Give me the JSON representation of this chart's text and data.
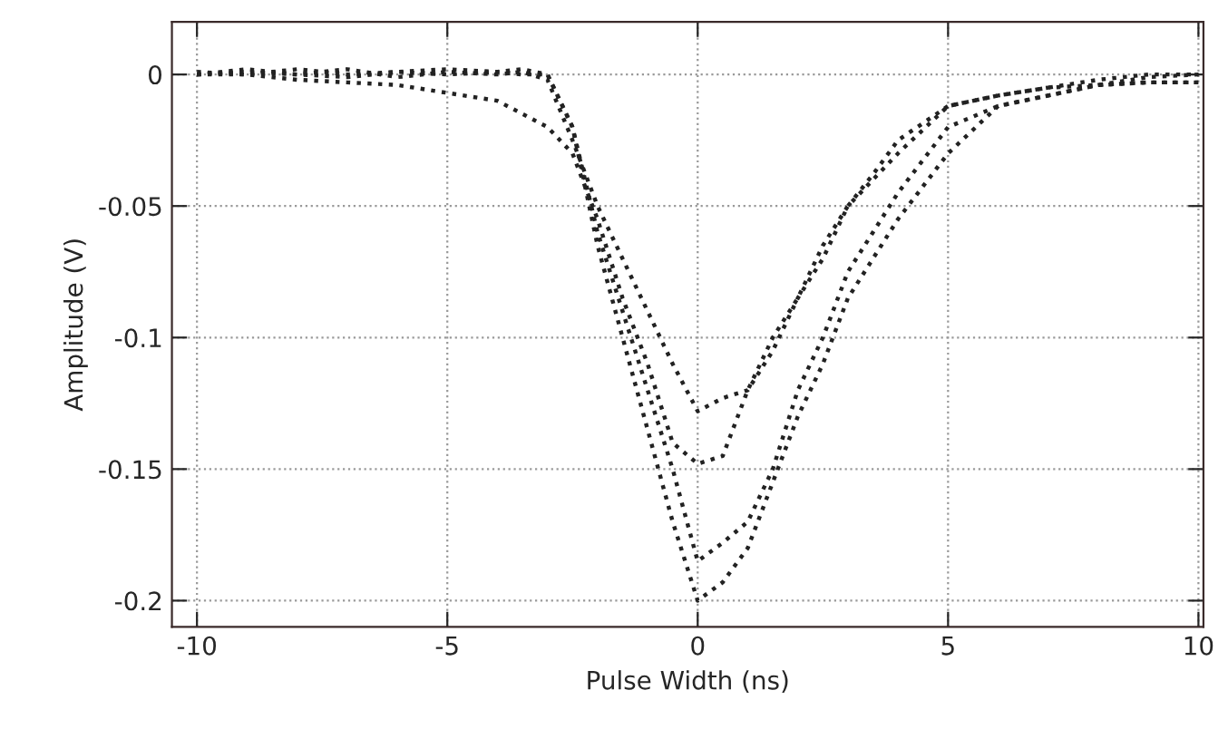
{
  "chart_data": {
    "type": "line",
    "xlabel": "Pulse Width (ns)",
    "ylabel": "Amplitude (V)",
    "xlim": [
      -10.5,
      10.1
    ],
    "ylim": [
      -0.21,
      0.02
    ],
    "xticks": [
      -10,
      -5,
      0,
      5,
      10
    ],
    "yticks": [
      -0.2,
      -0.15,
      -0.1,
      -0.05,
      0
    ],
    "grid": true,
    "marker": "none",
    "line_style": "dotted",
    "series": [
      {
        "color": "#222222",
        "x": [
          -10,
          -9,
          -8,
          -7,
          -6,
          -5,
          -4,
          -3.5,
          -3,
          -2.5,
          -2,
          -1.5,
          -1,
          -0.5,
          0,
          0.5,
          1,
          1.5,
          2,
          2.5,
          3,
          3.5,
          4,
          5,
          6,
          7,
          8,
          9,
          10
        ],
        "values": [
          0,
          0.002,
          0,
          0.002,
          -0.001,
          0.001,
          0,
          0.001,
          -0.002,
          -0.025,
          -0.05,
          -0.07,
          -0.09,
          -0.11,
          -0.128,
          -0.123,
          -0.12,
          -0.105,
          -0.085,
          -0.07,
          -0.05,
          -0.038,
          -0.025,
          -0.012,
          -0.008,
          -0.005,
          -0.002,
          0,
          0
        ]
      },
      {
        "color": "#222222",
        "x": [
          -10,
          -9,
          -8,
          -7,
          -6,
          -5,
          -4,
          -3.5,
          -3,
          -2.5,
          -2,
          -1.5,
          -1,
          -0.5,
          0,
          0.5,
          1,
          1.5,
          2,
          2.5,
          3,
          3.5,
          4,
          5,
          6,
          7,
          8,
          9,
          10
        ],
        "values": [
          0,
          0,
          -0.002,
          -0.003,
          -0.004,
          -0.007,
          -0.01,
          -0.015,
          -0.02,
          -0.03,
          -0.055,
          -0.085,
          -0.11,
          -0.14,
          -0.148,
          -0.145,
          -0.12,
          -0.1,
          -0.085,
          -0.065,
          -0.05,
          -0.04,
          -0.03,
          -0.012,
          -0.008,
          -0.005,
          -0.004,
          -0.003,
          -0.003
        ]
      },
      {
        "color": "#222222",
        "x": [
          -10,
          -9,
          -8,
          -7,
          -6,
          -5,
          -4,
          -3.5,
          -3,
          -2.5,
          -2,
          -1.5,
          -1,
          -0.5,
          0,
          0.5,
          1,
          1.5,
          2,
          2.5,
          3,
          3.5,
          4,
          5,
          6,
          7,
          8,
          9,
          10
        ],
        "values": [
          0,
          0.001,
          0,
          -0.001,
          0.001,
          0,
          0.001,
          0,
          0,
          -0.02,
          -0.06,
          -0.09,
          -0.12,
          -0.15,
          -0.185,
          -0.178,
          -0.17,
          -0.15,
          -0.12,
          -0.1,
          -0.075,
          -0.06,
          -0.045,
          -0.02,
          -0.012,
          -0.008,
          -0.004,
          -0.003,
          -0.003
        ]
      },
      {
        "color": "#222222",
        "x": [
          -10,
          -9,
          -8,
          -7,
          -6,
          -5,
          -4,
          -3.5,
          -3,
          -2.5,
          -2,
          -1.5,
          -1,
          -0.5,
          0,
          0.5,
          1,
          1.5,
          2,
          2.5,
          3,
          3.5,
          4,
          5,
          6,
          7,
          8,
          9,
          10
        ],
        "values": [
          0.001,
          0,
          0.002,
          0,
          0.001,
          0.002,
          0.001,
          0.002,
          0,
          -0.02,
          -0.065,
          -0.1,
          -0.135,
          -0.17,
          -0.2,
          -0.193,
          -0.18,
          -0.155,
          -0.13,
          -0.11,
          -0.085,
          -0.07,
          -0.055,
          -0.03,
          -0.012,
          -0.008,
          -0.004,
          -0.001,
          0
        ]
      }
    ]
  }
}
